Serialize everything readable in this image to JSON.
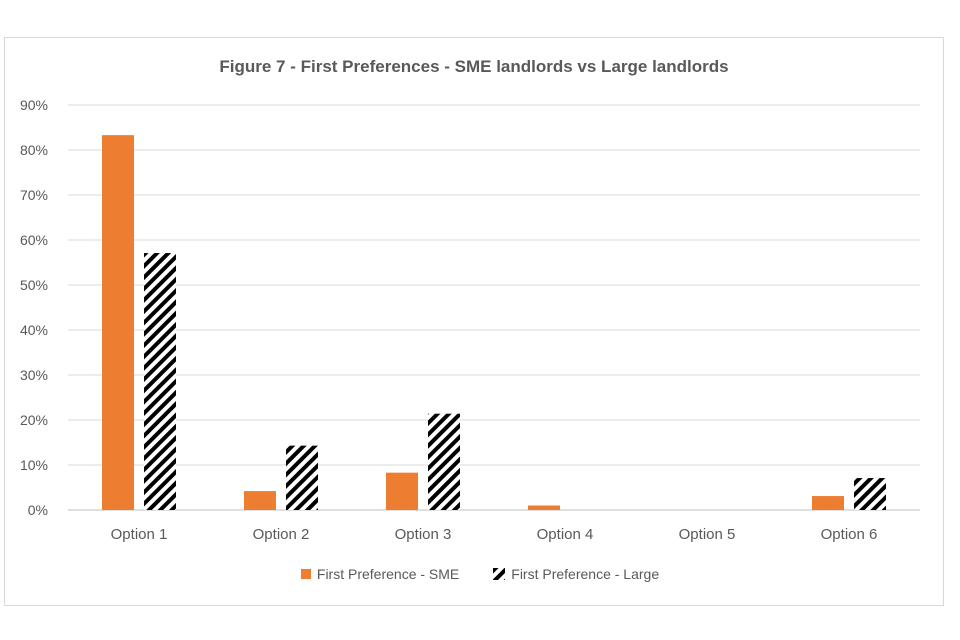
{
  "chart_data": {
    "type": "bar",
    "title": "Figure 7 - First Preferences - SME landlords vs Large landlords",
    "categories": [
      "Option 1",
      "Option 2",
      "Option 3",
      "Option 4",
      "Option 5",
      "Option 6"
    ],
    "series": [
      {
        "name": "First Preference - SME",
        "values": [
          83.3,
          4.2,
          8.3,
          1.0,
          0,
          3.1
        ],
        "color": "#ED7D31",
        "pattern": "solid"
      },
      {
        "name": "First Preference - Large",
        "values": [
          57.1,
          14.3,
          21.4,
          0,
          0,
          7.1
        ],
        "color": "#000000",
        "pattern": "diagonal-stripes"
      }
    ],
    "y_ticks": [
      "0%",
      "10%",
      "20%",
      "30%",
      "40%",
      "50%",
      "60%",
      "70%",
      "80%",
      "90%"
    ],
    "ylim": [
      0,
      90
    ],
    "y_unit": "%",
    "grid": true,
    "legend_position": "bottom"
  }
}
